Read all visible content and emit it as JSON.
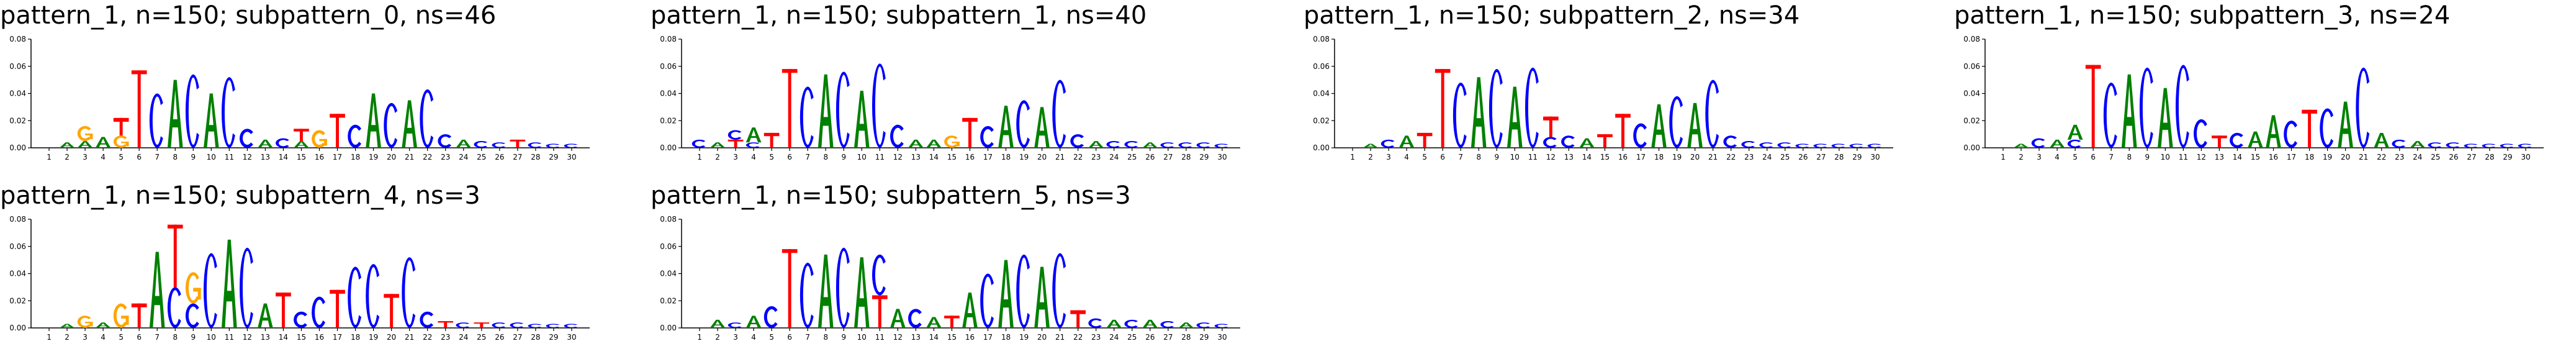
{
  "chart_data": [
    {
      "type": "sequence-logo",
      "title": "pattern_1, n=150; subpattern_0, ns=46",
      "x": [
        1,
        2,
        3,
        4,
        5,
        6,
        7,
        8,
        9,
        10,
        11,
        12,
        13,
        14,
        15,
        16,
        17,
        18,
        19,
        20,
        21,
        22,
        23,
        24,
        25,
        26,
        27,
        28,
        29,
        30
      ],
      "yticks": [
        "0.00",
        "0.02",
        "0.04",
        "0.06",
        "0.08"
      ],
      "ylim": [
        0,
        0.08
      ],
      "positions": [
        [],
        [
          [
            "A",
            0.004
          ]
        ],
        [
          [
            "G",
            0.011
          ],
          [
            "A",
            0.005
          ]
        ],
        [
          [
            "A",
            0.008
          ]
        ],
        [
          [
            "T",
            0.013
          ],
          [
            "G",
            0.009
          ]
        ],
        [
          [
            "T",
            0.057
          ]
        ],
        [
          [
            "C",
            0.04
          ]
        ],
        [
          [
            "A",
            0.05
          ]
        ],
        [
          [
            "C",
            0.054
          ]
        ],
        [
          [
            "A",
            0.04
          ]
        ],
        [
          [
            "C",
            0.052
          ]
        ],
        [
          [
            "C",
            0.014
          ]
        ],
        [
          [
            "A",
            0.006
          ]
        ],
        [
          [
            "C",
            0.007
          ]
        ],
        [
          [
            "T",
            0.009
          ],
          [
            "A",
            0.005
          ]
        ],
        [
          [
            "G",
            0.013
          ]
        ],
        [
          [
            "T",
            0.025
          ]
        ],
        [
          [
            "C",
            0.017
          ]
        ],
        [
          [
            "A",
            0.04
          ]
        ],
        [
          [
            "C",
            0.033
          ]
        ],
        [
          [
            "A",
            0.035
          ]
        ],
        [
          [
            "C",
            0.043
          ]
        ],
        [
          [
            "C",
            0.01
          ]
        ],
        [
          [
            "A",
            0.006
          ]
        ],
        [
          [
            "C",
            0.005
          ]
        ],
        [
          [
            "C",
            0.004
          ]
        ],
        [
          [
            "T",
            0.006
          ]
        ],
        [
          [
            "C",
            0.004
          ]
        ],
        [
          [
            "C",
            0.003
          ]
        ],
        [
          [
            "C",
            0.003
          ]
        ]
      ]
    },
    {
      "type": "sequence-logo",
      "title": "pattern_1, n=150; subpattern_1, ns=40",
      "x": [
        1,
        2,
        3,
        4,
        5,
        6,
        7,
        8,
        9,
        10,
        11,
        12,
        13,
        14,
        15,
        16,
        17,
        18,
        19,
        20,
        21,
        22,
        23,
        24,
        25,
        26,
        27,
        28,
        29,
        30
      ],
      "yticks": [
        "0.00",
        "0.02",
        "0.04",
        "0.06",
        "0.08"
      ],
      "ylim": [
        0,
        0.08
      ],
      "positions": [
        [
          [
            "C",
            0.006
          ]
        ],
        [
          [
            "A",
            0.004
          ]
        ],
        [
          [
            "C",
            0.007
          ],
          [
            "T",
            0.006
          ]
        ],
        [
          [
            "A",
            0.011
          ],
          [
            "C",
            0.004
          ]
        ],
        [
          [
            "T",
            0.011
          ]
        ],
        [
          [
            "T",
            0.058
          ]
        ],
        [
          [
            "C",
            0.045
          ]
        ],
        [
          [
            "A",
            0.054
          ]
        ],
        [
          [
            "C",
            0.056
          ]
        ],
        [
          [
            "A",
            0.042
          ]
        ],
        [
          [
            "C",
            0.062
          ]
        ],
        [
          [
            "C",
            0.017
          ]
        ],
        [
          [
            "A",
            0.006
          ]
        ],
        [
          [
            "A",
            0.006
          ]
        ],
        [
          [
            "G",
            0.009
          ]
        ],
        [
          [
            "T",
            0.022
          ]
        ],
        [
          [
            "C",
            0.016
          ]
        ],
        [
          [
            "A",
            0.031
          ]
        ],
        [
          [
            "C",
            0.035
          ]
        ],
        [
          [
            "A",
            0.03
          ]
        ],
        [
          [
            "C",
            0.05
          ]
        ],
        [
          [
            "C",
            0.01
          ]
        ],
        [
          [
            "A",
            0.005
          ]
        ],
        [
          [
            "C",
            0.005
          ]
        ],
        [
          [
            "C",
            0.005
          ]
        ],
        [
          [
            "A",
            0.004
          ]
        ],
        [
          [
            "C",
            0.004
          ]
        ],
        [
          [
            "C",
            0.004
          ]
        ],
        [
          [
            "C",
            0.004
          ]
        ],
        [
          [
            "C",
            0.003
          ]
        ]
      ]
    },
    {
      "type": "sequence-logo",
      "title": "pattern_1, n=150; subpattern_2, ns=34",
      "x": [
        1,
        2,
        3,
        4,
        5,
        6,
        7,
        8,
        9,
        10,
        11,
        12,
        13,
        14,
        15,
        16,
        17,
        18,
        19,
        20,
        21,
        22,
        23,
        24,
        25,
        26,
        27,
        28,
        29,
        30
      ],
      "yticks": [
        "0.00",
        "0.02",
        "0.04",
        "0.06",
        "0.08"
      ],
      "ylim": [
        0,
        0.08
      ],
      "positions": [
        [],
        [
          [
            "A",
            0.003
          ]
        ],
        [
          [
            "C",
            0.006
          ]
        ],
        [
          [
            "A",
            0.009
          ]
        ],
        [
          [
            "T",
            0.011
          ]
        ],
        [
          [
            "T",
            0.058
          ]
        ],
        [
          [
            "C",
            0.048
          ]
        ],
        [
          [
            "A",
            0.052
          ]
        ],
        [
          [
            "C",
            0.058
          ]
        ],
        [
          [
            "A",
            0.045
          ]
        ],
        [
          [
            "C",
            0.059
          ]
        ],
        [
          [
            "T",
            0.015
          ],
          [
            "C",
            0.008
          ]
        ],
        [
          [
            "C",
            0.009
          ]
        ],
        [
          [
            "A",
            0.007
          ]
        ],
        [
          [
            "T",
            0.01
          ]
        ],
        [
          [
            "T",
            0.025
          ]
        ],
        [
          [
            "C",
            0.018
          ]
        ],
        [
          [
            "A",
            0.032
          ]
        ],
        [
          [
            "C",
            0.038
          ]
        ],
        [
          [
            "A",
            0.033
          ]
        ],
        [
          [
            "C",
            0.05
          ]
        ],
        [
          [
            "C",
            0.009
          ]
        ],
        [
          [
            "C",
            0.005
          ]
        ],
        [
          [
            "C",
            0.004
          ]
        ],
        [
          [
            "C",
            0.004
          ]
        ],
        [
          [
            "C",
            0.003
          ]
        ],
        [
          [
            "C",
            0.003
          ]
        ],
        [
          [
            "C",
            0.003
          ]
        ],
        [
          [
            "C",
            0.003
          ]
        ],
        [
          [
            "C",
            0.003
          ]
        ]
      ]
    },
    {
      "type": "sequence-logo",
      "title": "pattern_1, n=150; subpattern_3, ns=24",
      "x": [
        1,
        2,
        3,
        4,
        5,
        6,
        7,
        8,
        9,
        10,
        11,
        12,
        13,
        14,
        15,
        16,
        17,
        18,
        19,
        20,
        21,
        22,
        23,
        24,
        25,
        26,
        27,
        28,
        29,
        30
      ],
      "yticks": [
        "0.00",
        "0.02",
        "0.04",
        "0.06",
        "0.08"
      ],
      "ylim": [
        0,
        0.08
      ],
      "positions": [
        [],
        [
          [
            "A",
            0.003
          ]
        ],
        [
          [
            "C",
            0.007
          ]
        ],
        [
          [
            "A",
            0.006
          ]
        ],
        [
          [
            "A",
            0.011
          ],
          [
            "C",
            0.006
          ]
        ],
        [
          [
            "T",
            0.061
          ]
        ],
        [
          [
            "C",
            0.048
          ]
        ],
        [
          [
            "A",
            0.054
          ]
        ],
        [
          [
            "C",
            0.059
          ]
        ],
        [
          [
            "A",
            0.044
          ]
        ],
        [
          [
            "C",
            0.061
          ]
        ],
        [
          [
            "C",
            0.021
          ]
        ],
        [
          [
            "T",
            0.009
          ]
        ],
        [
          [
            "C",
            0.011
          ]
        ],
        [
          [
            "A",
            0.012
          ]
        ],
        [
          [
            "A",
            0.024
          ]
        ],
        [
          [
            "C",
            0.02
          ]
        ],
        [
          [
            "T",
            0.028
          ]
        ],
        [
          [
            "C",
            0.029
          ]
        ],
        [
          [
            "A",
            0.034
          ]
        ],
        [
          [
            "C",
            0.059
          ]
        ],
        [
          [
            "A",
            0.011
          ]
        ],
        [
          [
            "C",
            0.006
          ]
        ],
        [
          [
            "A",
            0.005
          ]
        ],
        [
          [
            "C",
            0.004
          ]
        ],
        [
          [
            "C",
            0.004
          ]
        ],
        [
          [
            "C",
            0.003
          ]
        ],
        [
          [
            "C",
            0.003
          ]
        ],
        [
          [
            "C",
            0.003
          ]
        ],
        [
          [
            "C",
            0.003
          ]
        ]
      ]
    },
    {
      "type": "sequence-logo",
      "title": "pattern_1, n=150; subpattern_4, ns=3",
      "x": [
        1,
        2,
        3,
        4,
        5,
        6,
        7,
        8,
        9,
        10,
        11,
        12,
        13,
        14,
        15,
        16,
        17,
        18,
        19,
        20,
        21,
        22,
        23,
        24,
        25,
        26,
        27,
        28,
        29,
        30
      ],
      "yticks": [
        "0.00",
        "0.02",
        "0.04",
        "0.06",
        "0.08"
      ],
      "ylim": [
        0,
        0.08
      ],
      "positions": [
        [],
        [
          [
            "A",
            0.003
          ]
        ],
        [
          [
            "G",
            0.009
          ]
        ],
        [
          [
            "A",
            0.004
          ]
        ],
        [
          [
            "G",
            0.018
          ]
        ],
        [
          [
            "T",
            0.018
          ]
        ],
        [
          [
            "A",
            0.056
          ]
        ],
        [
          [
            "C",
            0.03
          ],
          [
            "T",
            0.046
          ]
        ],
        [
          [
            "G",
            0.023
          ],
          [
            "C",
            0.018
          ]
        ],
        [
          [
            "C",
            0.055
          ]
        ],
        [
          [
            "A",
            0.065
          ]
        ],
        [
          [
            "C",
            0.059
          ]
        ],
        [
          [
            "A",
            0.018
          ]
        ],
        [
          [
            "T",
            0.026
          ]
        ],
        [
          [
            "C",
            0.012
          ]
        ],
        [
          [
            "C",
            0.023
          ]
        ],
        [
          [
            "T",
            0.028
          ]
        ],
        [
          [
            "C",
            0.045
          ]
        ],
        [
          [
            "C",
            0.047
          ]
        ],
        [
          [
            "T",
            0.025
          ]
        ],
        [
          [
            "C",
            0.052
          ]
        ],
        [
          [
            "C",
            0.012
          ]
        ],
        [
          [
            "T",
            0.005
          ]
        ],
        [
          [
            "C",
            0.004
          ]
        ],
        [
          [
            "T",
            0.004
          ]
        ],
        [
          [
            "C",
            0.004
          ]
        ],
        [
          [
            "C",
            0.004
          ]
        ],
        [
          [
            "C",
            0.003
          ]
        ],
        [
          [
            "C",
            0.003
          ]
        ],
        [
          [
            "C",
            0.003
          ]
        ]
      ]
    },
    {
      "type": "sequence-logo",
      "title": "pattern_1, n=150; subpattern_5, ns=3",
      "x": [
        1,
        2,
        3,
        4,
        5,
        6,
        7,
        8,
        9,
        10,
        11,
        12,
        13,
        14,
        15,
        16,
        17,
        18,
        19,
        20,
        21,
        22,
        23,
        24,
        25,
        26,
        27,
        28,
        29,
        30
      ],
      "yticks": [
        "0.00",
        "0.02",
        "0.04",
        "0.06",
        "0.08"
      ],
      "ylim": [
        0,
        0.08
      ],
      "positions": [
        [],
        [
          [
            "A",
            0.006
          ]
        ],
        [
          [
            "C",
            0.004
          ]
        ],
        [
          [
            "A",
            0.009
          ]
        ],
        [
          [
            "C",
            0.016
          ]
        ],
        [
          [
            "T",
            0.058
          ]
        ],
        [
          [
            "C",
            0.048
          ]
        ],
        [
          [
            "A",
            0.054
          ]
        ],
        [
          [
            "C",
            0.059
          ]
        ],
        [
          [
            "A",
            0.052
          ]
        ],
        [
          [
            "C",
            0.03
          ],
          [
            "T",
            0.024
          ]
        ],
        [
          [
            "A",
            0.014
          ]
        ],
        [
          [
            "C",
            0.014
          ]
        ],
        [
          [
            "A",
            0.008
          ]
        ],
        [
          [
            "T",
            0.009
          ]
        ],
        [
          [
            "A",
            0.026
          ]
        ],
        [
          [
            "C",
            0.04
          ]
        ],
        [
          [
            "A",
            0.05
          ]
        ],
        [
          [
            "C",
            0.054
          ]
        ],
        [
          [
            "A",
            0.045
          ]
        ],
        [
          [
            "C",
            0.055
          ]
        ],
        [
          [
            "T",
            0.013
          ]
        ],
        [
          [
            "C",
            0.007
          ]
        ],
        [
          [
            "A",
            0.006
          ]
        ],
        [
          [
            "C",
            0.006
          ]
        ],
        [
          [
            "A",
            0.006
          ]
        ],
        [
          [
            "C",
            0.005
          ]
        ],
        [
          [
            "A",
            0.004
          ]
        ],
        [
          [
            "C",
            0.004
          ]
        ],
        [
          [
            "C",
            0.003
          ]
        ]
      ]
    }
  ],
  "colors": {
    "A": "#008000",
    "C": "#0000ff",
    "G": "#ffa500",
    "T": "#ff0000"
  }
}
